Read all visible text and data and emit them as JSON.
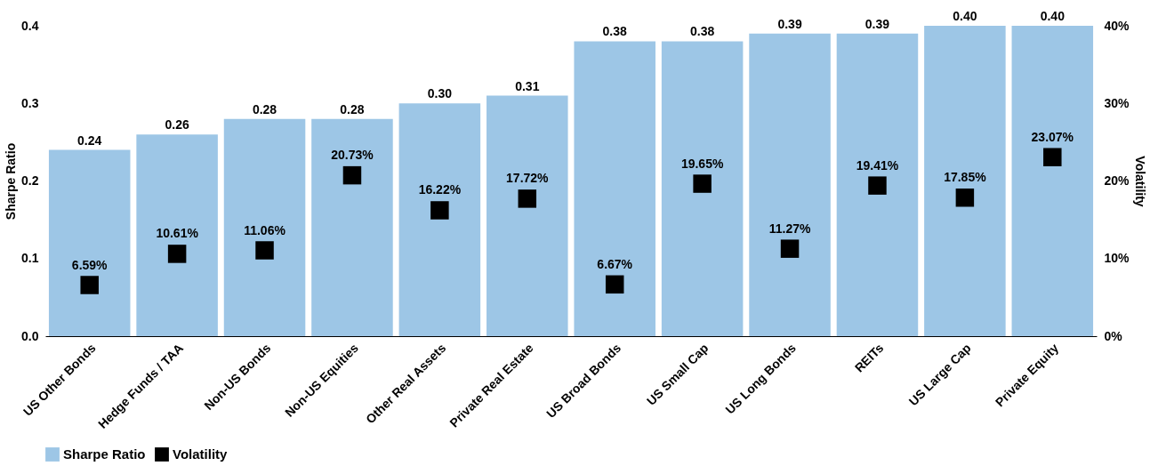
{
  "chart_data": {
    "type": "bar",
    "categories": [
      "US Other Bonds",
      "Hedge Funds / TAA",
      "Non-US Bonds",
      "Non-US Equities",
      "Other Real Assets",
      "Private Real Estate",
      "US Broad Bonds",
      "US Small Cap",
      "US Long Bonds",
      "REITs",
      "US Large Cap",
      "Private Equity"
    ],
    "series": [
      {
        "name": "Sharpe Ratio",
        "color": "#9dc6e6",
        "values": [
          0.24,
          0.26,
          0.28,
          0.28,
          0.3,
          0.31,
          0.38,
          0.38,
          0.39,
          0.39,
          0.4,
          0.4
        ],
        "value_labels": [
          "0.24",
          "0.26",
          "0.28",
          "0.28",
          "0.30",
          "0.31",
          "0.38",
          "0.38",
          "0.39",
          "0.39",
          "0.40",
          "0.40"
        ]
      },
      {
        "name": "Volatility",
        "type": "scatter",
        "axis": "y2",
        "color": "#000000",
        "values": [
          6.59,
          10.61,
          11.06,
          20.73,
          16.22,
          17.72,
          6.67,
          19.65,
          11.27,
          19.41,
          17.85,
          23.07
        ],
        "value_labels": [
          "6.59%",
          "10.61%",
          "11.06%",
          "20.73%",
          "16.22%",
          "17.72%",
          "6.67%",
          "19.65%",
          "11.27%",
          "19.41%",
          "17.85%",
          "23.07%"
        ]
      }
    ],
    "ylabel": "Sharpe Ratio",
    "y2label": "Volatility",
    "ylim": [
      0,
      0.4
    ],
    "yticks": [
      {
        "value": 0,
        "label": "0.0"
      },
      0.1,
      0.2,
      0.3,
      0.4
    ],
    "y2lim": [
      0,
      40
    ],
    "y2ticks": [
      {
        "value": 0,
        "label": "0%"
      },
      {
        "value": 10,
        "label": "10%"
      },
      {
        "value": 20,
        "label": "20%"
      },
      {
        "value": 30,
        "label": "30%"
      },
      {
        "value": 40,
        "label": "40%"
      }
    ],
    "marker": "square",
    "grid": false,
    "legend": "bottom"
  }
}
